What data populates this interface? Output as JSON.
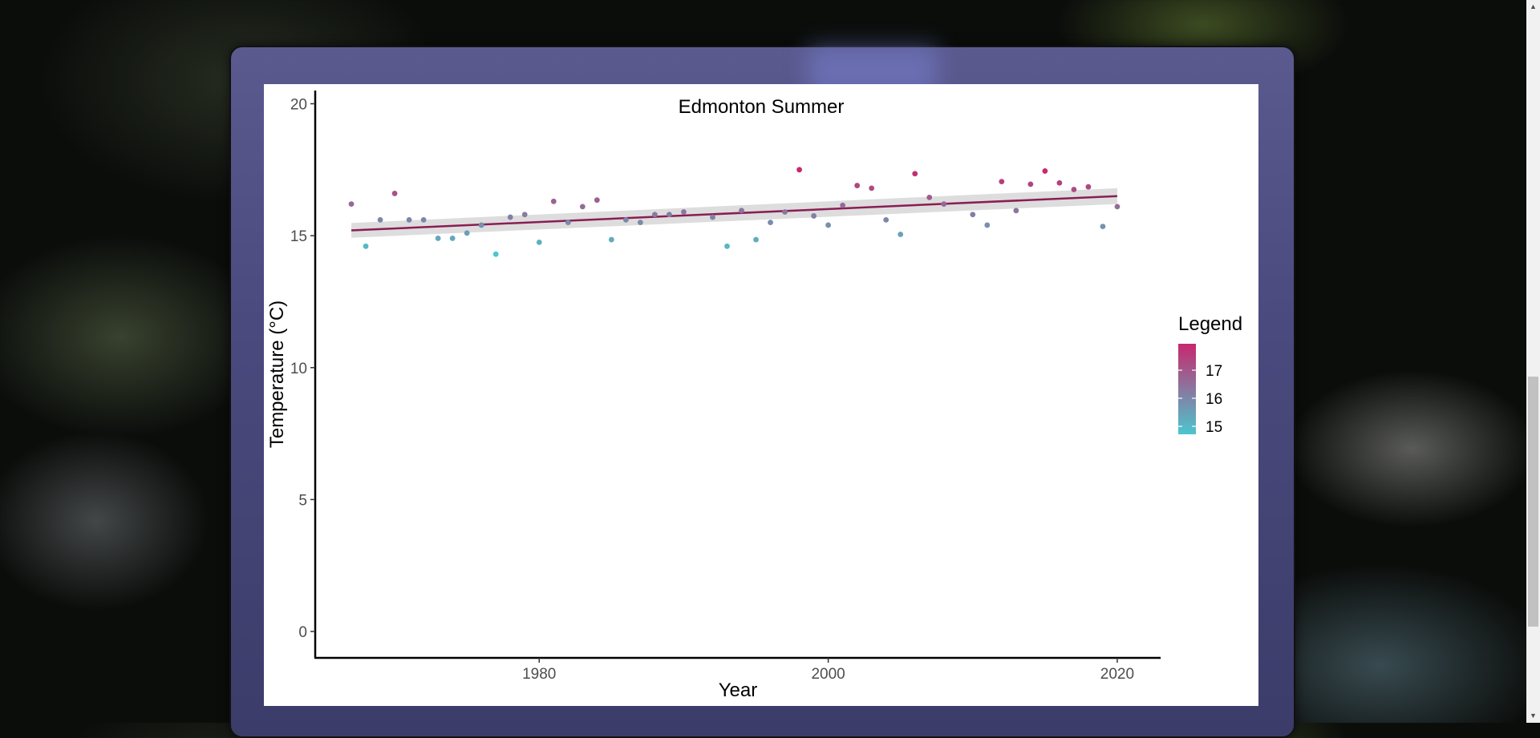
{
  "chart_data": {
    "type": "scatter",
    "title": "Edmonton Summer",
    "xlabel": "Year",
    "ylabel": "Temperature (°C)",
    "xlim": [
      1964.5,
      2023
    ],
    "ylim": [
      -1,
      20.5
    ],
    "xticks": [
      "1980",
      "2000",
      "2020"
    ],
    "yticks": [
      "0",
      "5",
      "10",
      "15",
      "20"
    ],
    "grid": false,
    "legend": {
      "title": "Legend",
      "position": "right",
      "labels": [
        "17",
        "16",
        "15"
      ],
      "color_low": "#4cc6cf",
      "color_high": "#c8286e"
    },
    "trendline": {
      "color": "#8b1d54",
      "ci_color": "#d9d9d9",
      "x": [
        1967,
        2020
      ],
      "y": [
        15.2,
        16.5
      ],
      "ci_halfwidth": [
        0.28,
        0.3
      ]
    },
    "points": {
      "x": [
        1967,
        1968,
        1969,
        1970,
        1971,
        1972,
        1973,
        1974,
        1975,
        1976,
        1977,
        1978,
        1979,
        1980,
        1981,
        1982,
        1983,
        1984,
        1985,
        1986,
        1987,
        1988,
        1989,
        1990,
        1992,
        1993,
        1994,
        1995,
        1996,
        1997,
        1998,
        1999,
        2000,
        2001,
        2002,
        2003,
        2004,
        2005,
        2006,
        2007,
        2008,
        2010,
        2011,
        2012,
        2013,
        2014,
        2015,
        2016,
        2017,
        2018,
        2019,
        2020
      ],
      "y": [
        16.2,
        14.6,
        15.6,
        16.6,
        15.6,
        15.6,
        14.9,
        14.9,
        15.1,
        15.4,
        14.3,
        15.7,
        15.8,
        14.75,
        16.3,
        15.5,
        16.1,
        16.35,
        14.85,
        15.6,
        15.5,
        15.8,
        15.8,
        15.9,
        15.7,
        14.6,
        15.95,
        14.85,
        15.5,
        15.9,
        17.5,
        15.75,
        15.4,
        16.15,
        16.9,
        16.8,
        15.6,
        15.05,
        17.35,
        16.45,
        16.2,
        15.8,
        15.4,
        17.05,
        15.95,
        16.95,
        17.45,
        17.0,
        16.75,
        16.85,
        15.35,
        16.1
      ]
    }
  }
}
